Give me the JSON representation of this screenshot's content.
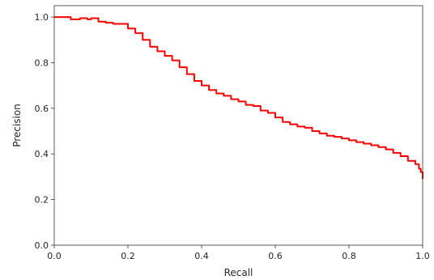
{
  "chart_data": {
    "type": "line",
    "title": "",
    "xlabel": "Recall",
    "ylabel": "Precision",
    "xlim": [
      0,
      1
    ],
    "ylim": [
      0,
      1.05
    ],
    "x_ticks": [
      0.0,
      0.2,
      0.4,
      0.6,
      0.8,
      1.0
    ],
    "y_ticks": [
      0.0,
      0.2,
      0.4,
      0.6,
      0.8,
      1.0
    ],
    "x_tick_labels": [
      "0.0",
      "0.2",
      "0.4",
      "0.6",
      "0.8",
      "1.0"
    ],
    "y_tick_labels": [
      "0.0",
      "0.2",
      "0.4",
      "0.6",
      "0.8",
      "1.0"
    ],
    "grid": false,
    "series": [
      {
        "color": "#ff0000",
        "x": [
          0.0,
          0.04,
          0.045,
          0.07,
          0.09,
          0.1,
          0.12,
          0.14,
          0.16,
          0.185,
          0.2,
          0.22,
          0.24,
          0.26,
          0.28,
          0.3,
          0.32,
          0.34,
          0.36,
          0.38,
          0.4,
          0.42,
          0.44,
          0.46,
          0.48,
          0.5,
          0.52,
          0.54,
          0.56,
          0.58,
          0.6,
          0.62,
          0.64,
          0.66,
          0.68,
          0.7,
          0.72,
          0.74,
          0.76,
          0.78,
          0.8,
          0.82,
          0.84,
          0.86,
          0.88,
          0.9,
          0.92,
          0.94,
          0.96,
          0.98,
          0.99,
          0.995,
          1.0
        ],
        "y": [
          1.0,
          1.0,
          0.99,
          0.995,
          0.99,
          0.995,
          0.98,
          0.975,
          0.97,
          0.97,
          0.95,
          0.93,
          0.9,
          0.87,
          0.85,
          0.83,
          0.81,
          0.78,
          0.75,
          0.72,
          0.7,
          0.68,
          0.665,
          0.655,
          0.64,
          0.63,
          0.615,
          0.61,
          0.59,
          0.58,
          0.56,
          0.54,
          0.53,
          0.52,
          0.515,
          0.5,
          0.49,
          0.48,
          0.475,
          0.468,
          0.46,
          0.452,
          0.445,
          0.438,
          0.43,
          0.42,
          0.405,
          0.39,
          0.37,
          0.355,
          0.335,
          0.32,
          0.29
        ]
      }
    ]
  }
}
